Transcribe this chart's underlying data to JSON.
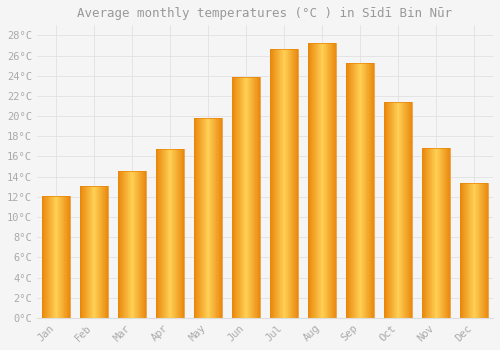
{
  "title": "Average monthly temperatures (°C ) in Sīdī Bin Nūr",
  "months": [
    "Jan",
    "Feb",
    "Mar",
    "Apr",
    "May",
    "Jun",
    "Jul",
    "Aug",
    "Sep",
    "Oct",
    "Nov",
    "Dec"
  ],
  "values": [
    12.1,
    13.1,
    14.6,
    16.7,
    19.8,
    23.9,
    26.6,
    27.2,
    25.3,
    21.4,
    16.8,
    13.4
  ],
  "bar_color_center": "#FFD055",
  "bar_color_edge": "#E8850A",
  "background_color": "#F5F5F5",
  "grid_color": "#DDDDDD",
  "ylim": [
    0,
    29
  ],
  "yticks": [
    0,
    2,
    4,
    6,
    8,
    10,
    12,
    14,
    16,
    18,
    20,
    22,
    24,
    26,
    28
  ],
  "tick_label_color": "#AAAAAA",
  "title_color": "#999999",
  "title_fontsize": 9,
  "bar_width": 0.75
}
